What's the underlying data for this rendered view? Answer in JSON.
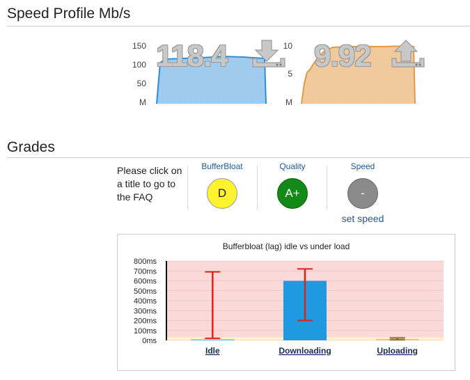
{
  "speed_profile": {
    "title": "Speed Profile Mb/s",
    "download": {
      "value_text": "118.4",
      "icon": "download-icon",
      "y_ticks": [
        "150",
        "100",
        "50",
        "M"
      ],
      "fill_color": "#9fcbef",
      "stroke_color": "#2f8fd6"
    },
    "upload": {
      "value_text": "9.92",
      "icon": "upload-icon",
      "y_ticks": [
        "10",
        "5",
        "M"
      ],
      "fill_color": "#f0c99c",
      "stroke_color": "#e09a4a"
    }
  },
  "grades": {
    "title": "Grades",
    "help_text": "Please click on a title to go to the FAQ",
    "columns": [
      {
        "title": "BufferBloat",
        "grade": "D",
        "color": "#fff22e"
      },
      {
        "title": "Quality",
        "grade": "A+",
        "color": "#138a17"
      },
      {
        "title": "Speed",
        "grade": "-",
        "color": "#8a8a8a",
        "link": "set speed"
      }
    ]
  },
  "chart_data": {
    "type": "bar",
    "title": "Bufferbloat (lag) idle vs under load",
    "categories": [
      "Idle",
      "Downloading",
      "Uploading"
    ],
    "y_tick_labels": [
      "800ms",
      "700ms",
      "600ms",
      "500ms",
      "400ms",
      "300ms",
      "200ms",
      "100ms",
      "0ms"
    ],
    "ylim": [
      0,
      800
    ],
    "series": [
      {
        "values": [
          10,
          600,
          12
        ],
        "error_low": [
          20,
          200,
          5
        ],
        "error_high": [
          690,
          720,
          25
        ]
      }
    ],
    "bar_color": "#1f9ae0",
    "error_color": "#e0201b",
    "bands": [
      {
        "from": 0,
        "to": 30,
        "color": "#fdf3c8"
      },
      {
        "from": 30,
        "to": 800,
        "color": "#fcd9d9"
      }
    ]
  }
}
